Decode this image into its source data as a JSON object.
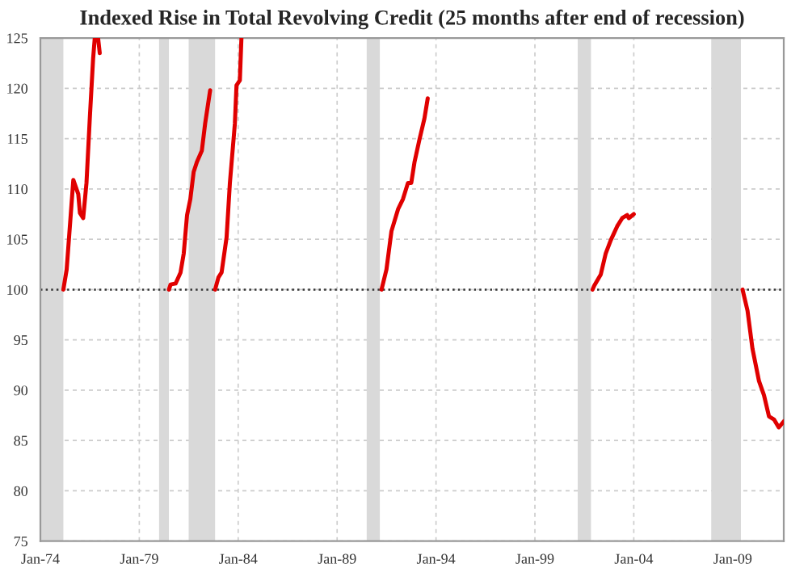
{
  "chart_data": {
    "type": "line",
    "title": "Indexed Rise in Total Revolving Credit (25 months after end of recession)",
    "series": [
      {
        "color": "#e00000",
        "x": [
          "1975-03",
          "1975-05",
          "1975-09",
          "1975-12",
          "1976-01",
          "1976-03",
          "1976-05",
          "1976-07",
          "1976-09",
          "1976-10",
          "1976-11",
          "1976-12",
          "1977-01"
        ],
        "values": [
          100,
          102,
          110.9,
          109.5,
          107.6,
          107.1,
          110.6,
          117,
          123,
          125,
          null,
          125,
          123.5
        ]
      },
      {
        "color": "#e00000",
        "x": [
          "1980-07",
          "1980-08",
          "1980-11",
          "1981-02",
          "1981-04",
          "1981-06",
          "1981-08",
          "1981-10",
          "1981-12",
          "1982-03",
          "1982-05",
          "1982-08"
        ],
        "values": [
          100,
          100.5,
          100.6,
          101.7,
          103.6,
          107.4,
          109,
          111.7,
          112.7,
          113.8,
          116.5,
          119.8
        ]
      },
      {
        "color": "#e00000",
        "x": [
          "1982-11",
          "1983-01",
          "1983-03",
          "1983-06",
          "1983-08",
          "1983-11",
          "1983-12",
          "1984-02",
          "1984-03"
        ],
        "values": [
          100,
          101.2,
          101.7,
          105.2,
          110.6,
          116.5,
          120.3,
          120.8,
          125
        ]
      },
      {
        "color": "#e00000",
        "x": [
          "1991-04",
          "1991-07",
          "1991-10",
          "1992-02",
          "1992-05",
          "1992-08",
          "1992-10",
          "1992-12",
          "1993-03",
          "1993-06",
          "1993-08"
        ],
        "values": [
          100,
          102,
          105.8,
          108,
          109,
          110.6,
          110.6,
          112.7,
          114.9,
          117,
          119
        ]
      },
      {
        "color": "#e00000",
        "x": [
          "2001-12",
          "2002-01",
          "2002-05",
          "2002-08",
          "2002-11",
          "2003-03",
          "2003-06",
          "2003-09",
          "2003-10",
          "2004-01"
        ],
        "values": [
          100,
          100.4,
          101.5,
          103.6,
          104.9,
          106.3,
          107.1,
          107.4,
          107.1,
          107.5
        ]
      },
      {
        "color": "#e00000",
        "x": [
          "2009-07",
          "2009-10",
          "2010-01",
          "2010-05",
          "2010-08",
          "2010-11",
          "2011-02",
          "2011-05",
          "2011-08"
        ],
        "values": [
          100,
          97.9,
          94.1,
          90.9,
          89.5,
          87.4,
          87.1,
          86.3,
          86.9
        ]
      }
    ],
    "xlim": [
      "1974-01",
      "2011-08"
    ],
    "xticks": [
      {
        "value": "1974-01",
        "label": "Jan-74"
      },
      {
        "value": "1979-01",
        "label": "Jan-79"
      },
      {
        "value": "1984-01",
        "label": "Jan-84"
      },
      {
        "value": "1989-01",
        "label": "Jan-89"
      },
      {
        "value": "1994-01",
        "label": "Jan-94"
      },
      {
        "value": "1999-01",
        "label": "Jan-99"
      },
      {
        "value": "2004-01",
        "label": "Jan-04"
      },
      {
        "value": "2009-01",
        "label": "Jan-09"
      }
    ],
    "ylim": [
      75,
      125
    ],
    "yticks": [
      75,
      80,
      85,
      90,
      95,
      100,
      105,
      110,
      115,
      120,
      125
    ],
    "ref_lines": [
      {
        "axis": "y",
        "value": 100,
        "color": "#333333",
        "line_style": "dotted"
      }
    ],
    "bands": [
      {
        "axis": "x",
        "from": "1974-01",
        "to": "1975-03",
        "color": "#d9d9d9"
      },
      {
        "axis": "x",
        "from": "1980-01",
        "to": "1980-07",
        "color": "#d9d9d9"
      },
      {
        "axis": "x",
        "from": "1981-07",
        "to": "1982-11",
        "color": "#d9d9d9"
      },
      {
        "axis": "x",
        "from": "1990-07",
        "to": "1991-03",
        "color": "#d9d9d9"
      },
      {
        "axis": "x",
        "from": "2001-03",
        "to": "2001-11",
        "color": "#d9d9d9"
      },
      {
        "axis": "x",
        "from": "2007-12",
        "to": "2009-06",
        "color": "#d9d9d9"
      }
    ],
    "grid": true,
    "legend": false,
    "line_style": "solid",
    "marker": "none"
  }
}
